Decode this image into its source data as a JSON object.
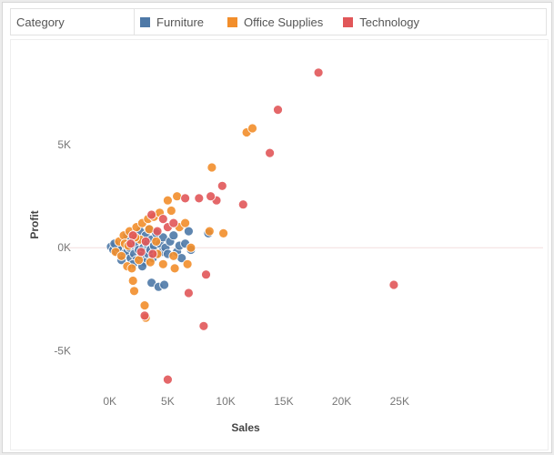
{
  "legend": {
    "title": "Category",
    "items": [
      {
        "label": "Furniture",
        "color": "#4e79a7"
      },
      {
        "label": "Office Supplies",
        "color": "#f28e2b"
      },
      {
        "label": "Technology",
        "color": "#e15759"
      }
    ]
  },
  "chart_data": {
    "type": "scatter",
    "title": "",
    "xlabel": "Sales",
    "ylabel": "Profit",
    "xlim": [
      -1000,
      26000
    ],
    "ylim": [
      -7500,
      9200
    ],
    "x_ticks": [
      {
        "value": 0,
        "label": "0K"
      },
      {
        "value": 5000,
        "label": "5K"
      },
      {
        "value": 10000,
        "label": "10K"
      },
      {
        "value": 15000,
        "label": "15K"
      },
      {
        "value": 20000,
        "label": "20K"
      },
      {
        "value": 25000,
        "label": "25K"
      }
    ],
    "y_ticks": [
      {
        "value": -5000,
        "label": "-5K"
      },
      {
        "value": 0,
        "label": "0K"
      },
      {
        "value": 5000,
        "label": "5K"
      }
    ],
    "grid": false,
    "series": [
      {
        "name": "Furniture",
        "color": "#4e79a7",
        "points": [
          [
            100,
            50
          ],
          [
            300,
            -100
          ],
          [
            500,
            150
          ],
          [
            600,
            -200
          ],
          [
            800,
            100
          ],
          [
            900,
            -300
          ],
          [
            1000,
            200
          ],
          [
            1100,
            -50
          ],
          [
            1200,
            300
          ],
          [
            1300,
            -400
          ],
          [
            1400,
            100
          ],
          [
            1500,
            -200
          ],
          [
            1600,
            400
          ],
          [
            1700,
            0
          ],
          [
            1800,
            -500
          ],
          [
            1900,
            300
          ],
          [
            2000,
            600
          ],
          [
            2100,
            -300
          ],
          [
            2200,
            200
          ],
          [
            2300,
            -600
          ],
          [
            2400,
            500
          ],
          [
            2500,
            -100
          ],
          [
            2600,
            800
          ],
          [
            2700,
            -400
          ],
          [
            2800,
            300
          ],
          [
            2900,
            0
          ],
          [
            3000,
            -700
          ],
          [
            3100,
            600
          ],
          [
            3200,
            200
          ],
          [
            3300,
            -300
          ],
          [
            3400,
            900
          ],
          [
            3500,
            -100
          ],
          [
            3600,
            400
          ],
          [
            3700,
            -500
          ],
          [
            3800,
            100
          ],
          [
            4000,
            700
          ],
          [
            4200,
            -300
          ],
          [
            4300,
            200
          ],
          [
            4500,
            -200
          ],
          [
            4600,
            500
          ],
          [
            4800,
            0
          ],
          [
            5000,
            -300
          ],
          [
            5200,
            300
          ],
          [
            5500,
            600
          ],
          [
            5800,
            -200
          ],
          [
            6000,
            100
          ],
          [
            6200,
            -500
          ],
          [
            6500,
            200
          ],
          [
            6800,
            800
          ],
          [
            7000,
            -100
          ],
          [
            8500,
            700
          ],
          [
            3600,
            -1700
          ],
          [
            4200,
            -1900
          ],
          [
            4700,
            -1800
          ],
          [
            2800,
            -900
          ],
          [
            700,
            0
          ],
          [
            400,
            200
          ],
          [
            1000,
            -600
          ],
          [
            1500,
            600
          ],
          [
            2000,
            -800
          ]
        ]
      },
      {
        "name": "Office Supplies",
        "color": "#f28e2b",
        "points": [
          [
            500,
            -200
          ],
          [
            800,
            300
          ],
          [
            1000,
            -400
          ],
          [
            1200,
            600
          ],
          [
            1500,
            -900
          ],
          [
            1700,
            800
          ],
          [
            1900,
            -1000
          ],
          [
            2000,
            -1600
          ],
          [
            2100,
            -2100
          ],
          [
            2300,
            1000
          ],
          [
            2500,
            -600
          ],
          [
            2800,
            1200
          ],
          [
            3000,
            -2800
          ],
          [
            3100,
            -3400
          ],
          [
            3300,
            1400
          ],
          [
            3500,
            -700
          ],
          [
            3800,
            1500
          ],
          [
            4000,
            300
          ],
          [
            4300,
            1700
          ],
          [
            4600,
            -800
          ],
          [
            5000,
            2300
          ],
          [
            5300,
            1800
          ],
          [
            5500,
            -400
          ],
          [
            5800,
            2500
          ],
          [
            6000,
            1000
          ],
          [
            6500,
            1200
          ],
          [
            7000,
            0
          ],
          [
            5600,
            -1000
          ],
          [
            6700,
            -800
          ],
          [
            8600,
            800
          ],
          [
            8800,
            3900
          ],
          [
            9800,
            700
          ],
          [
            11800,
            5600
          ],
          [
            12300,
            5800
          ],
          [
            1300,
            200
          ],
          [
            2600,
            400
          ],
          [
            3400,
            900
          ],
          [
            4100,
            -300
          ],
          [
            2200,
            500
          ],
          [
            1600,
            100
          ]
        ]
      },
      {
        "name": "Technology",
        "color": "#e15759",
        "points": [
          [
            18000,
            8500
          ],
          [
            14500,
            6700
          ],
          [
            13800,
            4600
          ],
          [
            11500,
            2100
          ],
          [
            9700,
            3000
          ],
          [
            9200,
            2300
          ],
          [
            8700,
            2500
          ],
          [
            7700,
            2400
          ],
          [
            6500,
            2400
          ],
          [
            6800,
            -2200
          ],
          [
            8300,
            -1300
          ],
          [
            8100,
            -3800
          ],
          [
            5000,
            -6400
          ],
          [
            3000,
            -3300
          ],
          [
            5000,
            1000
          ],
          [
            5500,
            1200
          ],
          [
            4600,
            1400
          ],
          [
            24500,
            -1800
          ],
          [
            3600,
            1600
          ],
          [
            2000,
            600
          ],
          [
            3100,
            300
          ],
          [
            4100,
            800
          ],
          [
            2700,
            -200
          ],
          [
            1800,
            200
          ],
          [
            3700,
            -300
          ]
        ]
      }
    ]
  }
}
